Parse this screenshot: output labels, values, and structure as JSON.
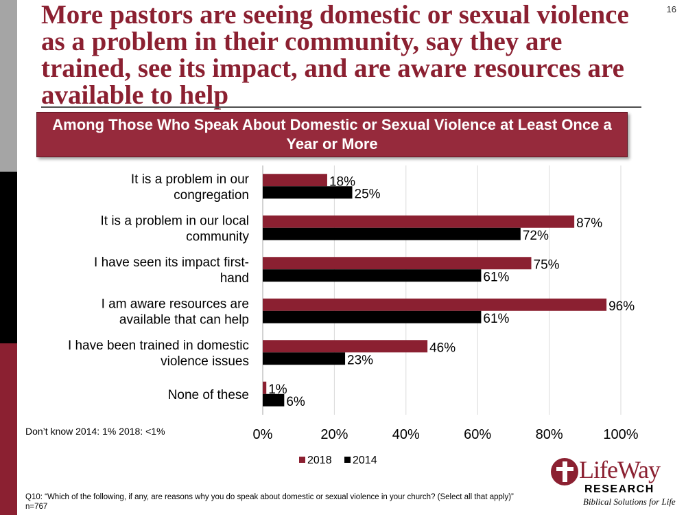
{
  "page": {
    "title": "More pastors are seeing domestic or sexual violence as a problem in their community, say they are trained, see its impact, and are aware resources are available to help",
    "page_number": "16",
    "subtitle": "Among Those Who Speak About Domestic or Sexual Violence at Least Once a Year or More",
    "footnote": "Don’t know 2014: 1%  2018: <1%",
    "question": "Q10: “Which of the following, if any, are reasons why you do speak about domestic or sexual violence in your church? (Select all that apply)” n=767"
  },
  "logo": {
    "brand": "LifeWay",
    "research": "RESEARCH",
    "tagline": "Biblical Solutions for Life"
  },
  "colors": {
    "series_2018": "#8b2031",
    "series_2014": "#000000",
    "grid": "#d9d9d9"
  },
  "chart_data": {
    "type": "bar",
    "orientation": "horizontal",
    "title": "Among Those Who Speak About Domestic or Sexual Violence at Least Once a Year or More",
    "categories": [
      [
        "It is a problem in our",
        "congregation"
      ],
      [
        "It is a problem in our local",
        "community"
      ],
      [
        "I have seen its impact first-",
        "hand"
      ],
      [
        "I am aware resources are",
        "available that can help"
      ],
      [
        "I have been trained in domestic",
        "violence issues"
      ],
      [
        "None of these"
      ]
    ],
    "series": [
      {
        "name": "2018",
        "values": [
          18,
          87,
          75,
          96,
          46,
          1
        ]
      },
      {
        "name": "2014",
        "values": [
          25,
          72,
          61,
          61,
          23,
          6
        ]
      }
    ],
    "xlim": [
      0,
      100
    ],
    "xticks": [
      "0%",
      "20%",
      "40%",
      "60%",
      "80%",
      "100%"
    ],
    "value_suffix": "%",
    "legend": [
      "2018",
      "2014"
    ],
    "legend_position": "bottom",
    "grid": true
  }
}
